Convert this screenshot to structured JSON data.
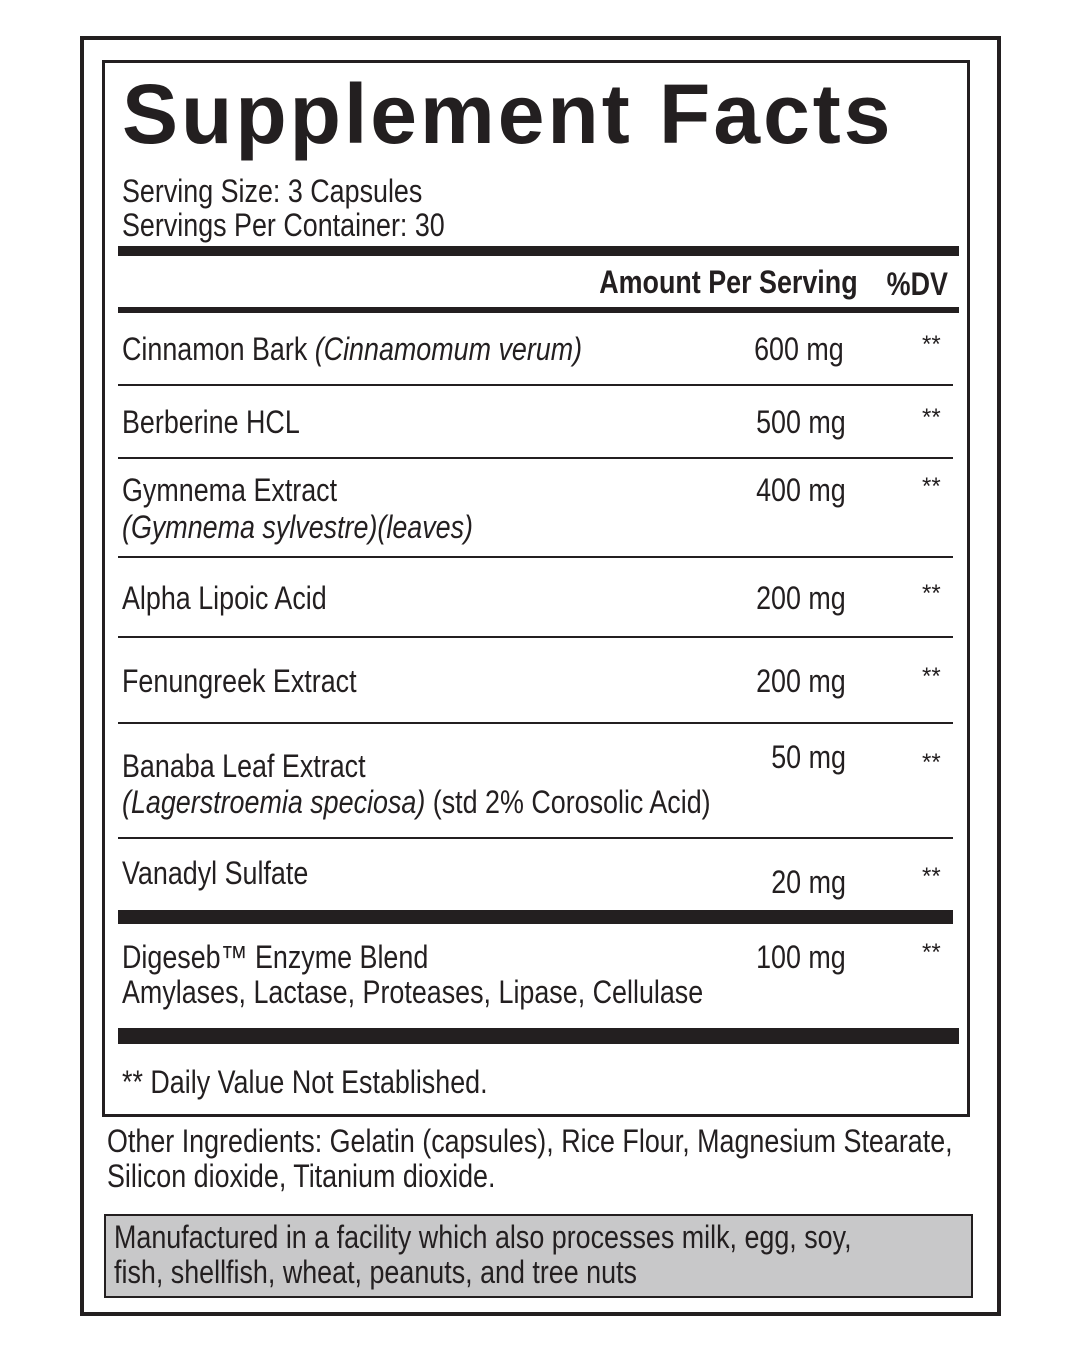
{
  "title": "Supplement Facts",
  "serving_size": "Serving Size: 3 Capsules",
  "servings_per_container": "Servings Per Container: 30",
  "header": {
    "amount": "Amount Per Serving",
    "dv": "%DV"
  },
  "ingredients": [
    {
      "name": "Cinnamon Bark",
      "latin": "(Cinnamomum verum)",
      "amount": "600 mg",
      "dv": "**"
    },
    {
      "name": "Berberine HCL",
      "amount": "500 mg",
      "dv": "**"
    },
    {
      "name": "Gymnema Extract",
      "latin": "(Gymnema sylvestre)(leaves)",
      "amount": "400 mg",
      "dv": "**"
    },
    {
      "name": "Alpha Lipoic Acid",
      "amount": "200 mg",
      "dv": "**"
    },
    {
      "name": "Fenungreek Extract",
      "amount": "200 mg",
      "dv": "**"
    },
    {
      "name": "Banaba Leaf Extract",
      "latin": "(Lagerstroemia speciosa)",
      "extra": " (std 2% Corosolic Acid)",
      "amount": "50 mg",
      "dv": "**"
    },
    {
      "name": "Vanadyl Sulfate",
      "amount": "20 mg",
      "dv": "**"
    },
    {
      "name": "Digeseb™ Enzyme Blend",
      "sub": "Amylases, Lactase, Proteases, Lipase, Cellulase",
      "amount": "100 mg",
      "dv": "**"
    }
  ],
  "footnote": "** Daily Value Not Established.",
  "other_ingredients": [
    "Other Ingredients: Gelatin (capsules), Rice Flour, Magnesium Stearate,",
    "Silicon dioxide, Titanium dioxide."
  ],
  "allergen": [
    "Manufactured in a facility which also processes milk, egg, soy,",
    "fish, shellfish, wheat, peanuts, and tree nuts"
  ],
  "colors": {
    "ink": "#231f20",
    "allergen_bg": "#c8c8c9"
  }
}
